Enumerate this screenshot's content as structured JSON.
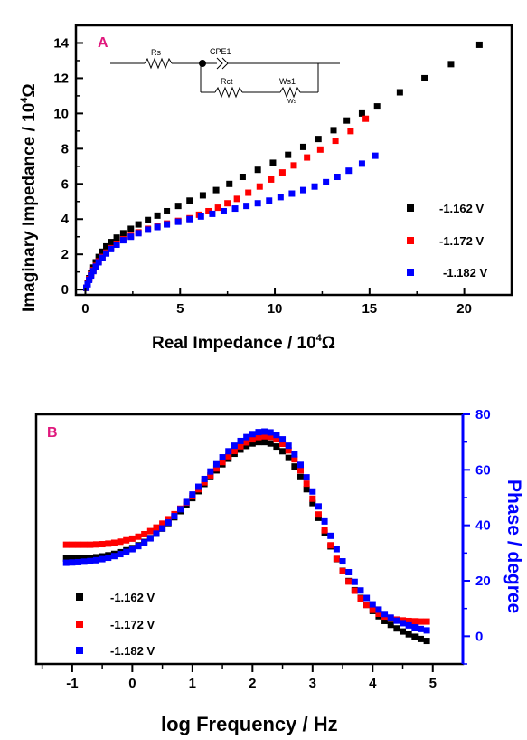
{
  "colors": {
    "s1": "#000000",
    "s2": "#ff0000",
    "s3": "#0000ff",
    "panel_letter": "#e0197d",
    "right_axis": "#0000ff"
  },
  "chart_data": [
    {
      "panel": "A",
      "type": "scatter",
      "xlabel_main": "Real Impedance / 10",
      "xlabel_sup": "4",
      "xlabel_unit": "Ω",
      "ylabel_main": "Imaginary Impedance / 10",
      "ylabel_sup": "4",
      "ylabel_unit": "Ω",
      "xlim": [
        -0.5,
        22.5
      ],
      "ylim": [
        -0.3,
        15.0
      ],
      "xticks": [
        0,
        5,
        10,
        15,
        20
      ],
      "yticks": [
        0,
        2,
        4,
        6,
        8,
        10,
        12,
        14
      ],
      "legend_position": "right-middle",
      "inset_circuit": {
        "labels": [
          "Rs",
          "CPE1",
          "Rct",
          "Ws1",
          "Ws"
        ]
      },
      "series": [
        {
          "name": "-1.162 V",
          "color_key": "s1",
          "x": [
            0.05,
            0.12,
            0.2,
            0.3,
            0.42,
            0.55,
            0.7,
            0.9,
            1.1,
            1.35,
            1.65,
            2.0,
            2.4,
            2.8,
            3.3,
            3.8,
            4.3,
            4.9,
            5.5,
            6.2,
            6.9,
            7.6,
            8.3,
            9.1,
            9.9,
            10.7,
            11.5,
            12.3,
            13.1,
            13.8,
            14.6,
            15.4,
            16.6,
            17.9,
            19.3,
            20.8
          ],
          "y": [
            0.1,
            0.35,
            0.65,
            0.95,
            1.25,
            1.55,
            1.85,
            2.15,
            2.45,
            2.7,
            2.95,
            3.2,
            3.45,
            3.7,
            3.95,
            4.2,
            4.45,
            4.75,
            5.05,
            5.35,
            5.65,
            6.0,
            6.4,
            6.8,
            7.2,
            7.65,
            8.1,
            8.55,
            9.05,
            9.6,
            10.0,
            10.4,
            11.2,
            12.0,
            12.8,
            13.9
          ]
        },
        {
          "name": "-1.172 V",
          "color_key": "s2",
          "x": [
            0.05,
            0.12,
            0.2,
            0.3,
            0.42,
            0.55,
            0.7,
            0.9,
            1.1,
            1.35,
            1.65,
            2.0,
            2.4,
            2.8,
            3.3,
            3.8,
            4.3,
            4.9,
            5.5,
            6.0,
            6.5,
            7.0,
            7.5,
            8.0,
            8.6,
            9.2,
            9.8,
            10.4,
            11.0,
            11.7,
            12.4,
            13.2,
            14.0,
            14.8
          ],
          "y": [
            0.1,
            0.32,
            0.6,
            0.85,
            1.1,
            1.35,
            1.6,
            1.85,
            2.1,
            2.35,
            2.6,
            2.85,
            3.05,
            3.25,
            3.45,
            3.6,
            3.75,
            3.9,
            4.05,
            4.25,
            4.45,
            4.65,
            4.9,
            5.15,
            5.5,
            5.85,
            6.25,
            6.65,
            7.05,
            7.5,
            7.95,
            8.45,
            9.0,
            9.7
          ]
        },
        {
          "name": "-1.182 V",
          "color_key": "s3",
          "x": [
            0.05,
            0.12,
            0.2,
            0.3,
            0.42,
            0.55,
            0.7,
            0.9,
            1.1,
            1.35,
            1.65,
            2.0,
            2.4,
            2.8,
            3.3,
            3.8,
            4.3,
            4.9,
            5.5,
            6.1,
            6.7,
            7.3,
            7.9,
            8.5,
            9.1,
            9.7,
            10.3,
            10.9,
            11.5,
            12.1,
            12.7,
            13.3,
            13.9,
            14.6,
            15.3
          ],
          "y": [
            0.1,
            0.3,
            0.55,
            0.8,
            1.05,
            1.3,
            1.55,
            1.8,
            2.05,
            2.3,
            2.55,
            2.8,
            3.0,
            3.2,
            3.4,
            3.55,
            3.7,
            3.85,
            4.0,
            4.15,
            4.3,
            4.45,
            4.6,
            4.75,
            4.9,
            5.05,
            5.25,
            5.45,
            5.65,
            5.85,
            6.1,
            6.4,
            6.75,
            7.15,
            7.6
          ]
        }
      ]
    },
    {
      "panel": "B",
      "type": "scatter",
      "xlabel": "log Frequency / Hz",
      "ylabel_right": "Phase / degree",
      "xlim": [
        -1.6,
        5.5
      ],
      "ylim": [
        -10,
        80
      ],
      "xticks": [
        -1,
        0,
        1,
        2,
        3,
        4,
        5
      ],
      "yticks": [
        0,
        20,
        40,
        60,
        80
      ],
      "legend_position": "bottom-left",
      "series": [
        {
          "name": "-1.162 V",
          "color_key": "s1",
          "x": [
            -1.1,
            -1.0,
            -0.9,
            -0.8,
            -0.7,
            -0.6,
            -0.5,
            -0.4,
            -0.3,
            -0.2,
            -0.1,
            0.0,
            0.1,
            0.2,
            0.3,
            0.4,
            0.5,
            0.6,
            0.7,
            0.8,
            0.9,
            1.0,
            1.1,
            1.2,
            1.3,
            1.4,
            1.5,
            1.6,
            1.7,
            1.8,
            1.9,
            2.0,
            2.1,
            2.2,
            2.3,
            2.4,
            2.5,
            2.6,
            2.7,
            2.8,
            2.9,
            3.0,
            3.1,
            3.2,
            3.3,
            3.4,
            3.5,
            3.6,
            3.7,
            3.8,
            3.9,
            4.0,
            4.1,
            4.2,
            4.3,
            4.4,
            4.5,
            4.6,
            4.7,
            4.8,
            4.9
          ],
          "y": [
            28.0,
            28.0,
            28.0,
            28.1,
            28.3,
            28.5,
            28.8,
            29.2,
            29.7,
            30.3,
            31.0,
            31.8,
            32.8,
            34.0,
            35.4,
            37.0,
            38.8,
            40.8,
            42.9,
            45.1,
            47.4,
            49.8,
            52.3,
            54.9,
            57.4,
            59.8,
            62.0,
            64.0,
            65.8,
            67.3,
            68.6,
            69.5,
            70.0,
            70.0,
            69.5,
            68.4,
            66.7,
            64.3,
            61.2,
            57.4,
            53.0,
            48.0,
            42.7,
            37.4,
            32.4,
            27.8,
            23.6,
            19.9,
            16.6,
            13.8,
            11.3,
            9.1,
            7.2,
            5.5,
            4.1,
            2.8,
            1.7,
            0.7,
            -0.2,
            -1.0,
            -1.7
          ]
        },
        {
          "name": "-1.172 V",
          "color_key": "s2",
          "x": [
            -1.1,
            -1.0,
            -0.9,
            -0.8,
            -0.7,
            -0.6,
            -0.5,
            -0.4,
            -0.3,
            -0.2,
            -0.1,
            0.0,
            0.1,
            0.2,
            0.3,
            0.4,
            0.5,
            0.6,
            0.7,
            0.8,
            0.9,
            1.0,
            1.1,
            1.2,
            1.3,
            1.4,
            1.5,
            1.6,
            1.7,
            1.8,
            1.9,
            2.0,
            2.1,
            2.2,
            2.3,
            2.4,
            2.5,
            2.6,
            2.7,
            2.8,
            2.9,
            3.0,
            3.1,
            3.2,
            3.3,
            3.4,
            3.5,
            3.6,
            3.7,
            3.8,
            3.9,
            4.0,
            4.1,
            4.2,
            4.3,
            4.4,
            4.5,
            4.6,
            4.7,
            4.8,
            4.9
          ],
          "y": [
            33.0,
            33.0,
            33.0,
            33.0,
            33.0,
            33.1,
            33.2,
            33.4,
            33.7,
            34.1,
            34.6,
            35.2,
            35.9,
            36.8,
            37.9,
            39.2,
            40.6,
            42.2,
            44.0,
            46.0,
            48.2,
            50.5,
            53.0,
            55.5,
            58.0,
            60.5,
            62.8,
            64.9,
            66.8,
            68.5,
            69.9,
            71.0,
            71.8,
            72.1,
            71.9,
            71.0,
            69.4,
            67.0,
            63.8,
            59.8,
            55.0,
            49.6,
            43.9,
            38.2,
            32.8,
            27.9,
            23.5,
            19.7,
            16.4,
            13.6,
            11.3,
            9.5,
            8.1,
            7.1,
            6.4,
            6.0,
            5.7,
            5.5,
            5.4,
            5.3,
            5.3
          ]
        },
        {
          "name": "-1.182 V",
          "color_key": "s3",
          "x": [
            -1.1,
            -1.0,
            -0.9,
            -0.8,
            -0.7,
            -0.6,
            -0.5,
            -0.4,
            -0.3,
            -0.2,
            -0.1,
            0.0,
            0.1,
            0.2,
            0.3,
            0.4,
            0.5,
            0.6,
            0.7,
            0.8,
            0.9,
            1.0,
            1.1,
            1.2,
            1.3,
            1.4,
            1.5,
            1.6,
            1.7,
            1.8,
            1.9,
            2.0,
            2.1,
            2.2,
            2.3,
            2.4,
            2.5,
            2.6,
            2.7,
            2.8,
            2.9,
            3.0,
            3.1,
            3.2,
            3.3,
            3.4,
            3.5,
            3.6,
            3.7,
            3.8,
            3.9,
            4.0,
            4.1,
            4.2,
            4.3,
            4.4,
            4.5,
            4.6,
            4.7,
            4.8,
            4.9
          ],
          "y": [
            26.5,
            26.6,
            26.7,
            26.9,
            27.1,
            27.4,
            27.8,
            28.3,
            28.9,
            29.6,
            30.4,
            31.4,
            32.5,
            33.8,
            35.3,
            37.0,
            38.9,
            41.0,
            43.3,
            45.8,
            48.4,
            51.1,
            53.9,
            56.7,
            59.4,
            62.0,
            64.5,
            66.7,
            68.7,
            70.4,
            71.8,
            72.9,
            73.6,
            73.8,
            73.5,
            72.6,
            71.0,
            68.7,
            65.6,
            61.8,
            57.3,
            52.2,
            46.8,
            41.4,
            36.2,
            31.4,
            27.0,
            23.1,
            19.6,
            16.5,
            13.8,
            11.5,
            9.6,
            8.0,
            6.7,
            5.6,
            4.7,
            3.9,
            3.2,
            2.6,
            2.1
          ]
        }
      ]
    }
  ]
}
